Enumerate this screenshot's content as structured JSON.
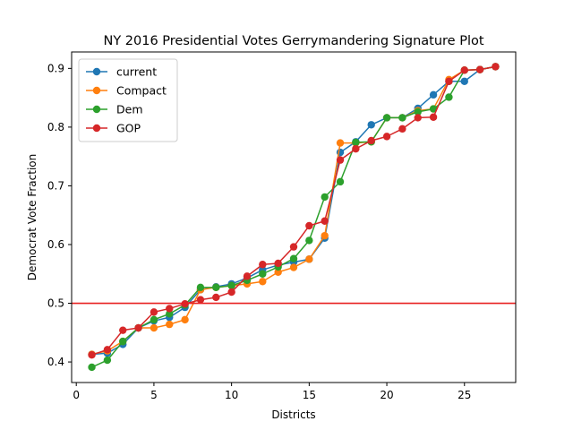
{
  "chart_data": {
    "type": "line",
    "title": "NY 2016 Presidential Votes Gerrymandering Signature Plot",
    "xlabel": "Districts",
    "ylabel": "Democrat Vote Fraction",
    "xlim": [
      -0.3,
      28.3
    ],
    "ylim": [
      0.365,
      0.928
    ],
    "xticks": [
      0,
      5,
      10,
      15,
      20,
      25
    ],
    "yticks": [
      0.4,
      0.5,
      0.6,
      0.7,
      0.8,
      0.9
    ],
    "reference_line": {
      "y": 0.5,
      "color": "#e82020"
    },
    "grid": false,
    "legend_position": "upper-left",
    "x": [
      1,
      2,
      3,
      4,
      5,
      6,
      7,
      8,
      9,
      10,
      11,
      12,
      13,
      14,
      15,
      16,
      17,
      18,
      19,
      20,
      21,
      22,
      23,
      24,
      25,
      26,
      27
    ],
    "series": [
      {
        "name": "current",
        "color": "#1f77b4",
        "values": [
          0.413,
          0.415,
          0.43,
          0.458,
          0.47,
          0.476,
          0.493,
          0.523,
          0.528,
          0.533,
          0.543,
          0.557,
          0.565,
          0.57,
          0.575,
          0.611,
          0.757,
          0.775,
          0.804,
          0.816,
          0.816,
          0.832,
          0.855,
          0.878,
          0.878,
          0.898,
          0.903
        ]
      },
      {
        "name": "Compact",
        "color": "#ff7f0e",
        "values": [
          0.413,
          0.419,
          0.435,
          0.458,
          0.458,
          0.464,
          0.472,
          0.523,
          0.527,
          0.53,
          0.533,
          0.537,
          0.553,
          0.561,
          0.575,
          0.615,
          0.773,
          0.773,
          0.775,
          0.816,
          0.816,
          0.828,
          0.831,
          0.881,
          0.897,
          0.898,
          0.903
        ]
      },
      {
        "name": "Dem",
        "color": "#2ca02c",
        "values": [
          0.391,
          0.403,
          0.435,
          0.458,
          0.472,
          0.482,
          0.497,
          0.527,
          0.527,
          0.53,
          0.539,
          0.55,
          0.562,
          0.576,
          0.607,
          0.681,
          0.707,
          0.774,
          0.775,
          0.816,
          0.816,
          0.826,
          0.831,
          0.851,
          0.897,
          0.898,
          0.903
        ]
      },
      {
        "name": "GOP",
        "color": "#d62728",
        "values": [
          0.412,
          0.421,
          0.454,
          0.458,
          0.485,
          0.491,
          0.499,
          0.506,
          0.51,
          0.519,
          0.546,
          0.566,
          0.568,
          0.596,
          0.632,
          0.64,
          0.744,
          0.763,
          0.777,
          0.784,
          0.797,
          0.816,
          0.817,
          0.878,
          0.897,
          0.898,
          0.903
        ]
      }
    ]
  }
}
